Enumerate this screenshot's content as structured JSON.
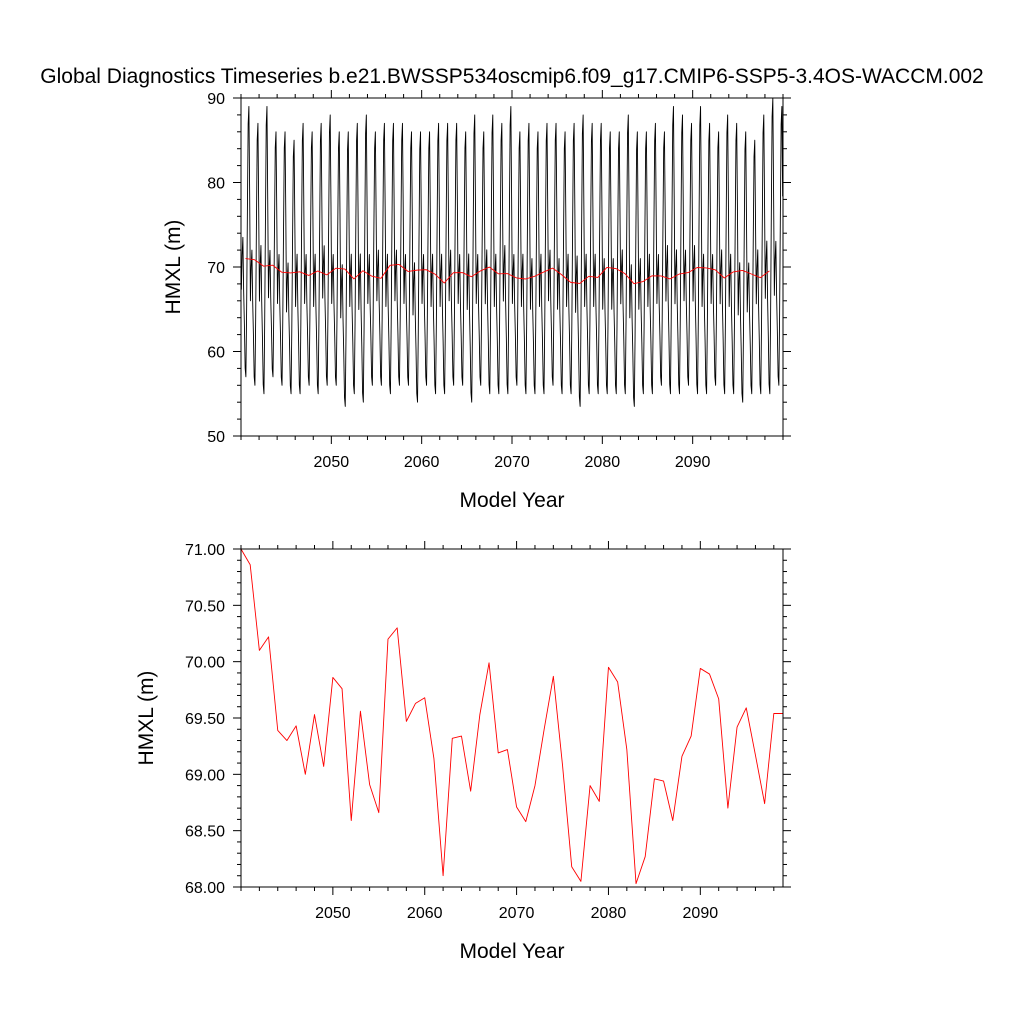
{
  "figure_title": "Global Diagnostics Timeseries b.e21.BWSSP534oscmip6.f09_g17.CMIP6-SSP5-3.4OS-WACCM.002",
  "colors": {
    "monthly": "#000000",
    "annual": "#ff0000",
    "axes": "#000000",
    "background": "#ffffff"
  },
  "chart_data": [
    {
      "type": "line",
      "title": "",
      "xlabel": "Model Year",
      "ylabel": "HMXL (m)",
      "xlim": [
        2040,
        2100
      ],
      "ylim": [
        50,
        90
      ],
      "xticks": [
        2050,
        2060,
        2070,
        2080,
        2090
      ],
      "xtick_labels": [
        "2050",
        "2060",
        "2070",
        "2080",
        "2090"
      ],
      "yticks": [
        50,
        60,
        70,
        80,
        90
      ],
      "ytick_labels": [
        "50",
        "60",
        "70",
        "80",
        "90"
      ],
      "grid": false,
      "legend": "none",
      "series": [
        {
          "color": "#000000",
          "note": "monthly values, annual cycle",
          "seasonal_pattern": [
            67,
            71,
            73,
            67,
            63,
            58,
            57,
            65,
            76,
            86,
            88,
            78
          ],
          "annual_peak": [
            89,
            87,
            89,
            86,
            86,
            85,
            87,
            86,
            87,
            88,
            86,
            86,
            87,
            88,
            86,
            87,
            87,
            87,
            86,
            86,
            86,
            87,
            87,
            87,
            86,
            88,
            86,
            88,
            87,
            89,
            86,
            87,
            86,
            87,
            87,
            86,
            87,
            88,
            87,
            87,
            86,
            86,
            88,
            86,
            86,
            87,
            86,
            89,
            88,
            87,
            89,
            87,
            86,
            88,
            87,
            86,
            85,
            88,
            90,
            89
          ],
          "annual_min": [
            57,
            56,
            55,
            57,
            56,
            55,
            55,
            56,
            55,
            56,
            56,
            53.5,
            55,
            54,
            56,
            56,
            55,
            56,
            56,
            54,
            56,
            55,
            55,
            56,
            56,
            54,
            56,
            55,
            55,
            55,
            56,
            55,
            55,
            55,
            56,
            55,
            55,
            53.5,
            55,
            55,
            55,
            55,
            55,
            53.5,
            55,
            55,
            56,
            55,
            55,
            56,
            55,
            55,
            56,
            55,
            55,
            54,
            55,
            55,
            55,
            56
          ]
        },
        {
          "color": "#ff0000",
          "note": "annual means",
          "x": [
            2040.5,
            2041.5,
            2042.5,
            2043.5,
            2044.5,
            2045.5,
            2046.5,
            2047.5,
            2048.5,
            2049.5,
            2050.5,
            2051.5,
            2052.5,
            2053.5,
            2054.5,
            2055.5,
            2056.5,
            2057.5,
            2058.5,
            2059.5,
            2060.5,
            2061.5,
            2062.5,
            2063.5,
            2064.5,
            2065.5,
            2066.5,
            2067.5,
            2068.5,
            2069.5,
            2070.5,
            2071.5,
            2072.5,
            2073.5,
            2074.5,
            2075.5,
            2076.5,
            2077.5,
            2078.5,
            2079.5,
            2080.5,
            2081.5,
            2082.5,
            2083.5,
            2084.5,
            2085.5,
            2086.5,
            2087.5,
            2088.5,
            2089.5,
            2090.5,
            2091.5,
            2092.5,
            2093.5,
            2094.5,
            2095.5,
            2096.5,
            2097.5,
            2098.5
          ],
          "values": [
            71.0,
            70.86,
            70.1,
            70.22,
            69.39,
            69.3,
            69.43,
            69.0,
            69.53,
            69.07,
            69.86,
            69.76,
            68.59,
            69.56,
            68.91,
            68.66,
            70.2,
            70.3,
            69.47,
            69.63,
            69.68,
            69.14,
            68.1,
            69.32,
            69.34,
            68.85,
            69.53,
            69.99,
            69.19,
            69.22,
            68.71,
            68.58,
            68.9,
            69.4,
            69.87,
            69.08,
            68.18,
            68.05,
            68.9,
            68.76,
            69.95,
            69.82,
            69.22,
            68.03,
            68.27,
            68.96,
            68.94,
            68.59,
            69.16,
            69.34,
            69.94,
            69.89,
            69.67,
            68.7,
            69.42,
            69.59,
            69.17,
            68.74,
            69.54
          ]
        }
      ]
    },
    {
      "type": "line",
      "title": "",
      "xlabel": "Model Year",
      "ylabel": "HMXL (m)",
      "xlim": [
        2040,
        2099
      ],
      "ylim": [
        68.0,
        71.0
      ],
      "xticks": [
        2050,
        2060,
        2070,
        2080,
        2090
      ],
      "xtick_labels": [
        "2050",
        "2060",
        "2070",
        "2080",
        "2090"
      ],
      "yticks": [
        68.0,
        68.5,
        69.0,
        69.5,
        70.0,
        70.5,
        71.0
      ],
      "ytick_labels": [
        "68.00",
        "68.50",
        "69.00",
        "69.50",
        "70.00",
        "70.50",
        "71.00"
      ],
      "grid": false,
      "legend": "none",
      "series": [
        {
          "color": "#ff0000",
          "note": "annual means",
          "x": [
            2040,
            2041,
            2042,
            2043,
            2044,
            2045,
            2046,
            2047,
            2048,
            2049,
            2050,
            2051,
            2052,
            2053,
            2054,
            2055,
            2056,
            2057,
            2058,
            2059,
            2060,
            2061,
            2062,
            2063,
            2064,
            2065,
            2066,
            2067,
            2068,
            2069,
            2070,
            2071,
            2072,
            2073,
            2074,
            2075,
            2076,
            2077,
            2078,
            2079,
            2080,
            2081,
            2082,
            2083,
            2084,
            2085,
            2086,
            2087,
            2088,
            2089,
            2090,
            2091,
            2092,
            2093,
            2094,
            2095,
            2096,
            2097,
            2098,
            2099
          ],
          "values": [
            71.0,
            70.86,
            70.1,
            70.22,
            69.39,
            69.3,
            69.43,
            69.0,
            69.53,
            69.07,
            69.86,
            69.76,
            68.59,
            69.56,
            68.91,
            68.66,
            70.2,
            70.3,
            69.47,
            69.63,
            69.68,
            69.14,
            68.1,
            69.32,
            69.34,
            68.85,
            69.53,
            69.99,
            69.19,
            69.22,
            68.71,
            68.58,
            68.9,
            69.4,
            69.87,
            69.08,
            68.18,
            68.05,
            68.9,
            68.76,
            69.95,
            69.82,
            69.22,
            68.03,
            68.27,
            68.96,
            68.94,
            68.59,
            69.16,
            69.34,
            69.94,
            69.89,
            69.67,
            68.7,
            69.42,
            69.59,
            69.17,
            68.74,
            69.54,
            69.54
          ]
        }
      ]
    }
  ]
}
